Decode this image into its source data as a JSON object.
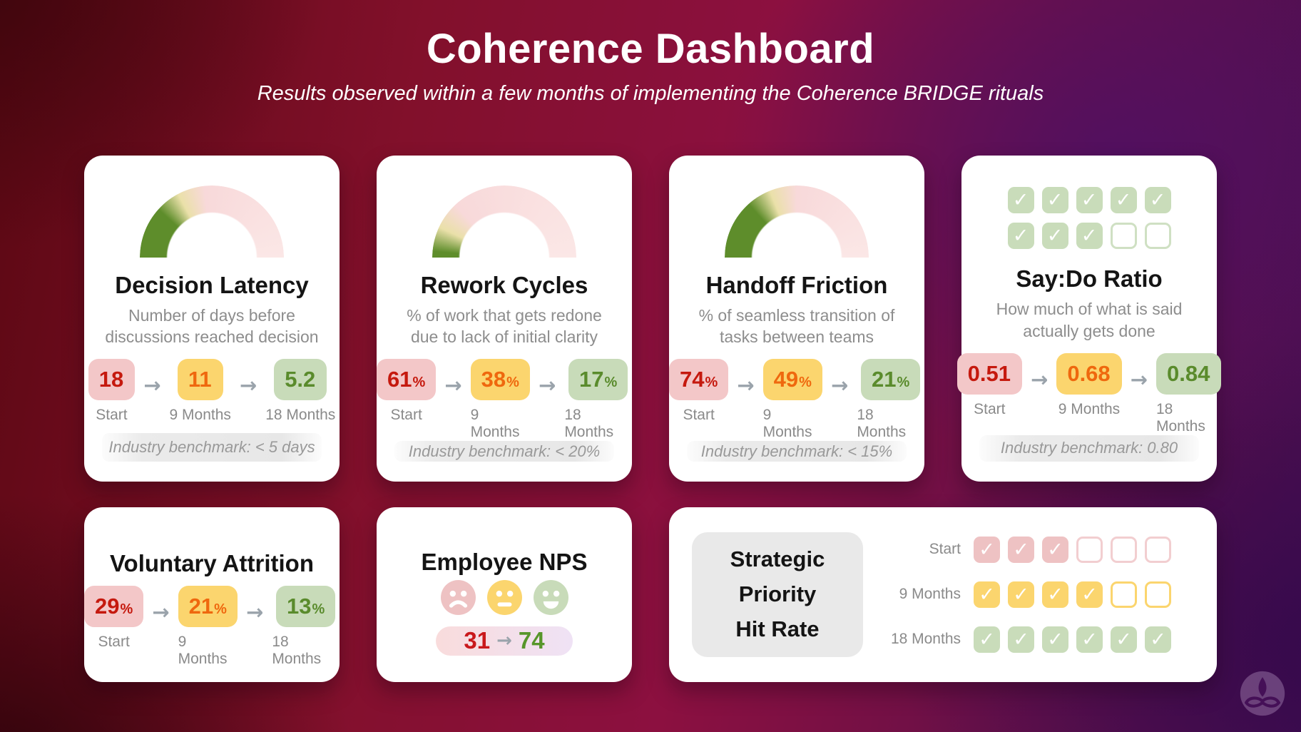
{
  "header": {
    "title": "Coherence Dashboard",
    "subtitle": "Results observed within a few months of implementing the Coherence BRIDGE rituals"
  },
  "icons": {
    "arrow": "→",
    "check": "✓"
  },
  "labels": {
    "start": "Start",
    "nine_months": "9 Months",
    "eighteen_months": "18 Months"
  },
  "colors": {
    "gauge_green": "#5e8d2b",
    "gauge_cream": "#eae0a9",
    "gauge_pink": "#f8d9da",
    "gauge_pale_pink": "#fbe7e6",
    "chip_red_bg": "#f3c7c8",
    "chip_red_text": "#c5190e",
    "chip_yellow_bg": "#fbd56e",
    "chip_yellow_text": "#ef680e",
    "chip_green_bg": "#c8dbb9",
    "chip_green_text": "#5a8b2c",
    "card_bg": "#ffffff",
    "background_left": "#5c0813",
    "background_center": "#8c1040",
    "background_right": "#470f50"
  },
  "cards": {
    "decision_latency": {
      "title": "Decision Latency",
      "description": "Number of days before discussions reached decision",
      "gauge_green_deg": 62,
      "steps": [
        {
          "value": "18",
          "suffix": "",
          "tone": "red"
        },
        {
          "value": "11",
          "suffix": "",
          "tone": "yellow"
        },
        {
          "value": "5.2",
          "suffix": "",
          "tone": "green"
        }
      ],
      "benchmark": "Industry benchmark: < 5 days"
    },
    "rework_cycles": {
      "title": "Rework Cycles",
      "description": "% of work that gets redone due to lack of initial clarity",
      "gauge_green_deg": 25,
      "steps": [
        {
          "value": "61",
          "suffix": "%",
          "tone": "red"
        },
        {
          "value": "38",
          "suffix": "%",
          "tone": "yellow"
        },
        {
          "value": "17",
          "suffix": "%",
          "tone": "green"
        }
      ],
      "benchmark": "Industry benchmark: < 20%"
    },
    "handoff_friction": {
      "title": "Handoff Friction",
      "description": "% of seamless transition of tasks between teams",
      "gauge_green_deg": 68,
      "steps": [
        {
          "value": "74",
          "suffix": "%",
          "tone": "red"
        },
        {
          "value": "49",
          "suffix": "%",
          "tone": "yellow"
        },
        {
          "value": "21",
          "suffix": "%",
          "tone": "green"
        }
      ],
      "benchmark": "Industry benchmark: < 15%"
    },
    "say_do": {
      "title": "Say:Do Ratio",
      "description": "How much of what is said actually gets done",
      "rows": [
        {
          "checked": 5,
          "total": 5,
          "color": "green"
        },
        {
          "checked": 3,
          "total": 5,
          "color": "green"
        }
      ],
      "steps": [
        {
          "value": "0.51",
          "suffix": "",
          "tone": "red"
        },
        {
          "value": "0.68",
          "suffix": "",
          "tone": "yellow"
        },
        {
          "value": "0.84",
          "suffix": "",
          "tone": "green"
        }
      ],
      "benchmark": "Industry benchmark: 0.80"
    },
    "voluntary_attrition": {
      "title": "Voluntary Attrition",
      "steps": [
        {
          "value": "29",
          "suffix": "%",
          "tone": "red"
        },
        {
          "value": "21",
          "suffix": "%",
          "tone": "yellow"
        },
        {
          "value": "13",
          "suffix": "%",
          "tone": "green"
        }
      ]
    },
    "employee_nps": {
      "title": "Employee NPS",
      "score_from": "31",
      "score_to": "74"
    },
    "strategic": {
      "title_lines": [
        "Strategic",
        "Priority",
        "Hit Rate"
      ],
      "rows": [
        {
          "label": "Start",
          "checked": 3,
          "total": 6,
          "color": "red"
        },
        {
          "label": "9 Months",
          "checked": 4,
          "total": 6,
          "color": "yellow"
        },
        {
          "label": "18 Months",
          "checked": 6,
          "total": 6,
          "color": "green"
        }
      ]
    }
  },
  "chart_data": [
    {
      "type": "gauge",
      "title": "Decision Latency",
      "description": "Number of days before discussions reached decision",
      "categories": [
        "Start",
        "9 Months",
        "18 Months"
      ],
      "values": [
        18,
        11,
        5.2
      ],
      "unit": "days",
      "benchmark": "< 5 days",
      "gauge_green_fraction": 0.34
    },
    {
      "type": "gauge",
      "title": "Rework Cycles",
      "description": "% of work that gets redone due to lack of initial clarity",
      "categories": [
        "Start",
        "9 Months",
        "18 Months"
      ],
      "values": [
        61,
        38,
        17
      ],
      "unit": "%",
      "benchmark": "< 20%",
      "gauge_green_fraction": 0.14
    },
    {
      "type": "gauge",
      "title": "Handoff Friction",
      "description": "% of seamless transition of tasks between teams",
      "categories": [
        "Start",
        "9 Months",
        "18 Months"
      ],
      "values": [
        74,
        49,
        21
      ],
      "unit": "%",
      "benchmark": "< 15%",
      "gauge_green_fraction": 0.38
    },
    {
      "type": "checkbox-grid",
      "title": "Say:Do Ratio",
      "description": "How much of what is said actually gets done",
      "categories": [
        "Start",
        "9 Months",
        "18 Months"
      ],
      "values": [
        0.51,
        0.68,
        0.84
      ],
      "checked": 8,
      "total": 10,
      "benchmark": "0.80"
    },
    {
      "type": "progression",
      "title": "Voluntary Attrition",
      "categories": [
        "Start",
        "9 Months",
        "18 Months"
      ],
      "values": [
        29,
        21,
        13
      ],
      "unit": "%"
    },
    {
      "type": "progression",
      "title": "Employee NPS",
      "categories": [
        "Start",
        "18 Months"
      ],
      "values": [
        31,
        74
      ]
    },
    {
      "type": "checkbox-grid",
      "title": "Strategic Priority Hit Rate",
      "categories": [
        "Start",
        "9 Months",
        "18 Months"
      ],
      "values": [
        3,
        4,
        6
      ],
      "total_per_row": 6
    }
  ]
}
